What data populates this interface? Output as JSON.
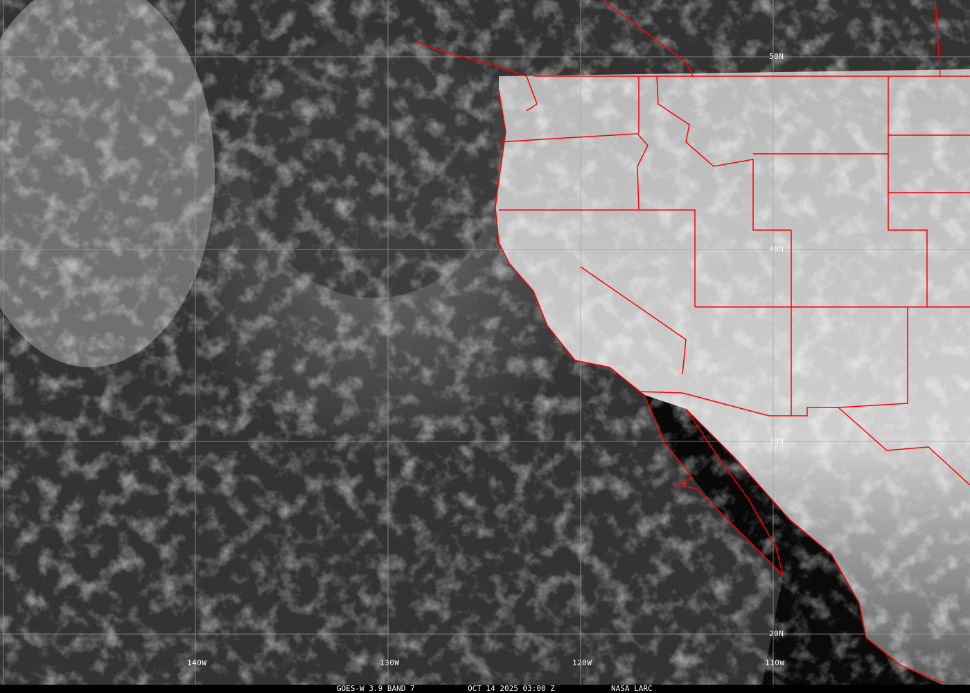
{
  "image": {
    "satellite": "GOES-W",
    "channel": "3.9 BAND 7",
    "date": "OCT 14 2025",
    "time": "03:00 Z",
    "source": "NASA LARC",
    "border_color": "#ff0000",
    "grid_color": "#a0a0a0"
  },
  "caption": {
    "left": "GOES-W 3.9 BAND 7",
    "center": "OCT 14 2025 03:00 Z",
    "right": "NASA LARC"
  },
  "grid_labels": {
    "lat": [
      "50N",
      "40N",
      "30N",
      "20N"
    ],
    "lon": [
      "140W",
      "130W",
      "120W",
      "110W"
    ]
  }
}
